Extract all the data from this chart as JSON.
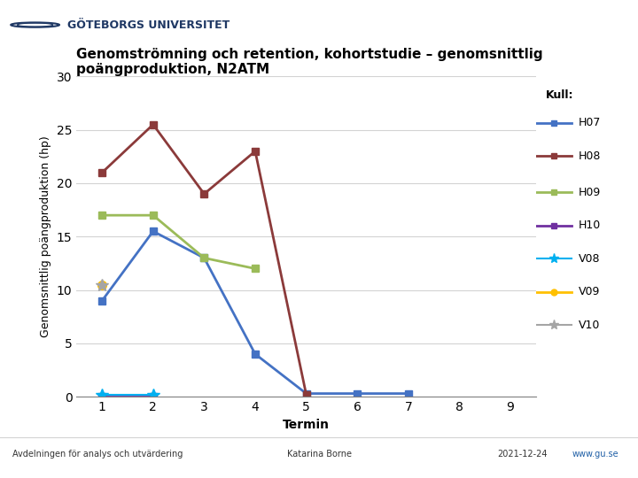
{
  "title_line1": "Genomströmning och retention, kohortstudie – genomsnittlig",
  "title_line2": "poängproduktion, N2ATM",
  "ylabel": "Genomsnittlig poängproduktion (hp)",
  "xlabel": "Termin",
  "legend_title": "Kull:",
  "xlim": [
    0.5,
    9.5
  ],
  "ylim": [
    0,
    30
  ],
  "yticks": [
    0,
    5,
    10,
    15,
    20,
    25,
    30
  ],
  "xticks": [
    1,
    2,
    3,
    4,
    5,
    6,
    7,
    8,
    9
  ],
  "series": {
    "H07": {
      "x": [
        1,
        2,
        3,
        4,
        5,
        6,
        7
      ],
      "y": [
        9,
        15.5,
        13,
        4,
        0.3,
        0.3,
        0.3
      ],
      "color": "#4472C4",
      "marker": "s",
      "linewidth": 2,
      "markersize": 6
    },
    "H08": {
      "x": [
        1,
        2,
        3,
        4,
        5
      ],
      "y": [
        21,
        25.5,
        19,
        23,
        0.2
      ],
      "color": "#8B3A3A",
      "marker": "s",
      "linewidth": 2,
      "markersize": 6
    },
    "H09": {
      "x": [
        1,
        2,
        3,
        4
      ],
      "y": [
        17,
        17,
        13,
        12
      ],
      "color": "#9BBB59",
      "marker": "s",
      "linewidth": 2,
      "markersize": 6
    },
    "H10": {
      "x": [
        1,
        2
      ],
      "y": [
        0.0,
        0.0
      ],
      "color": "#7030A0",
      "marker": "s",
      "linewidth": 2,
      "markersize": 6
    },
    "V08": {
      "x": [
        1,
        2
      ],
      "y": [
        0.2,
        0.2
      ],
      "color": "#00B0F0",
      "marker": "*",
      "linewidth": 1.5,
      "markersize": 10
    },
    "V09": {
      "x": [
        1
      ],
      "y": [
        10.5
      ],
      "color": "#FFC000",
      "marker": "o",
      "linewidth": 2,
      "markersize": 7
    },
    "V10": {
      "x": [
        1
      ],
      "y": [
        10.5
      ],
      "color": "#A5A5A5",
      "marker": "*",
      "linewidth": 1.5,
      "markersize": 10
    }
  },
  "footer_left": "Avdelningen för analys och utvärdering",
  "footer_center": "Katarina Borne",
  "footer_right": "2021-12-24",
  "footer_far_right": "www.gu.se",
  "background_color": "#FFFFFF"
}
